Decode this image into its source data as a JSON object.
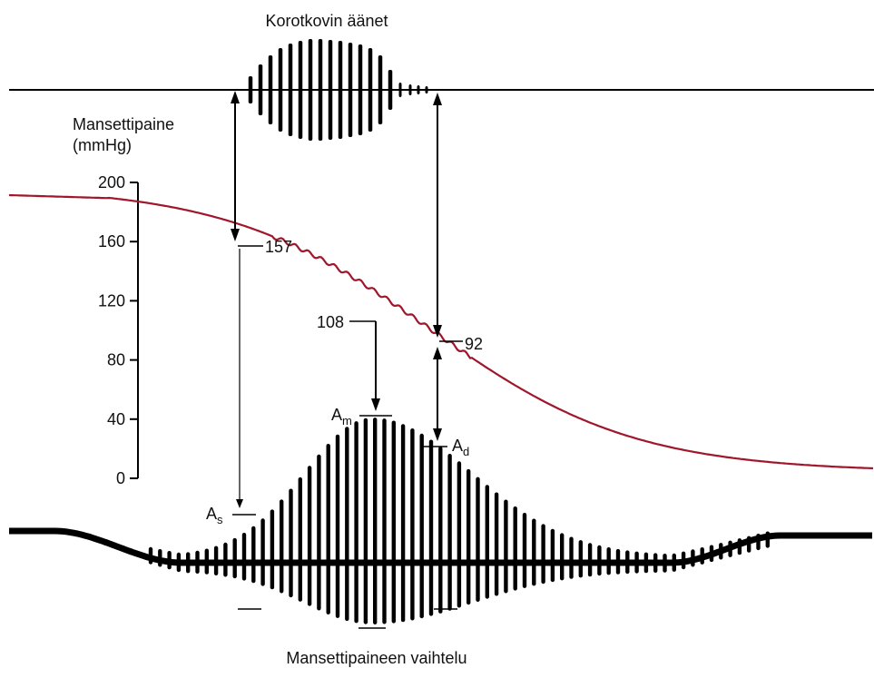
{
  "top_label": "Korotkovin äänet",
  "bottom_label": "Mansettipaineen vaihtelu",
  "y_axis": {
    "title_line1": "Mansettipaine",
    "title_line2": "(mmHg)",
    "ticks": [
      "200",
      "160",
      "120",
      "80",
      "40",
      "0"
    ],
    "tick_values": [
      200,
      160,
      120,
      80,
      40,
      0
    ]
  },
  "markers": {
    "systolic": "157",
    "mean": "108",
    "diastolic": "92"
  },
  "amplitudes": {
    "systolic": {
      "main": "A",
      "sub": "s"
    },
    "mean": {
      "main": "A",
      "sub": "m"
    },
    "diastolic": {
      "main": "A",
      "sub": "d"
    }
  },
  "colors": {
    "pressure_curve": "#a0162b",
    "ink": "#000000"
  }
}
